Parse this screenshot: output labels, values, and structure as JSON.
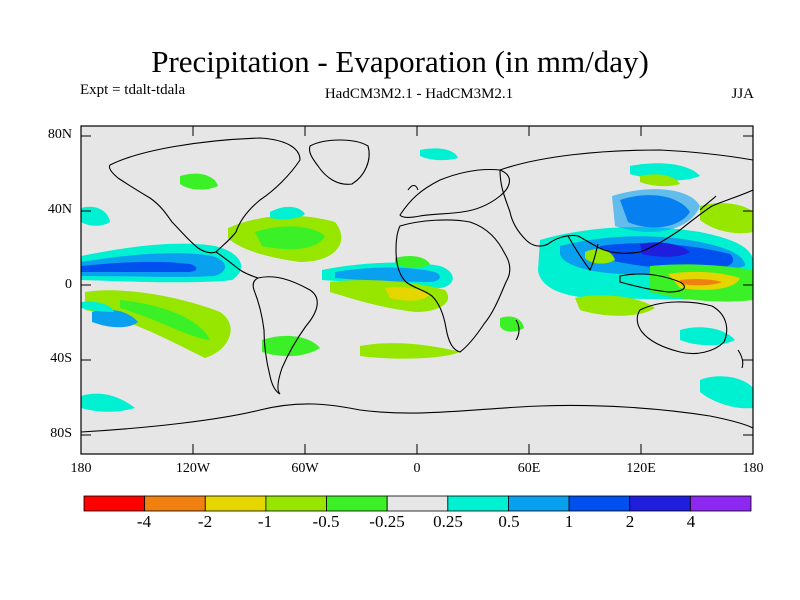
{
  "title": "Precipitation - Evaporation (in mm/day)",
  "experiment": "Expt = tdalt-tdala",
  "models": "HadCM3M2.1 - HadCM3M2.1",
  "season": "JJA",
  "map": {
    "background_color": "#e6e6e6",
    "coastline_color": "#000000",
    "lat_ticks": [
      "80N",
      "40N",
      "0",
      "40S",
      "80S"
    ],
    "lon_ticks": [
      "180",
      "120W",
      "60W",
      "0",
      "60E",
      "120E",
      "180"
    ]
  },
  "colorbar": {
    "colors": [
      "#ff0000",
      "#f08010",
      "#e6d600",
      "#96e600",
      "#3cf028",
      "#e6e6e6",
      "#00f0d2",
      "#0aa0f0",
      "#0050f0",
      "#1e1edc",
      "#8c28f0"
    ],
    "labels": [
      "-4",
      "-2",
      "-1",
      "-0.5",
      "-0.25",
      "0.25",
      "0.5",
      "1",
      "2",
      "4"
    ]
  }
}
